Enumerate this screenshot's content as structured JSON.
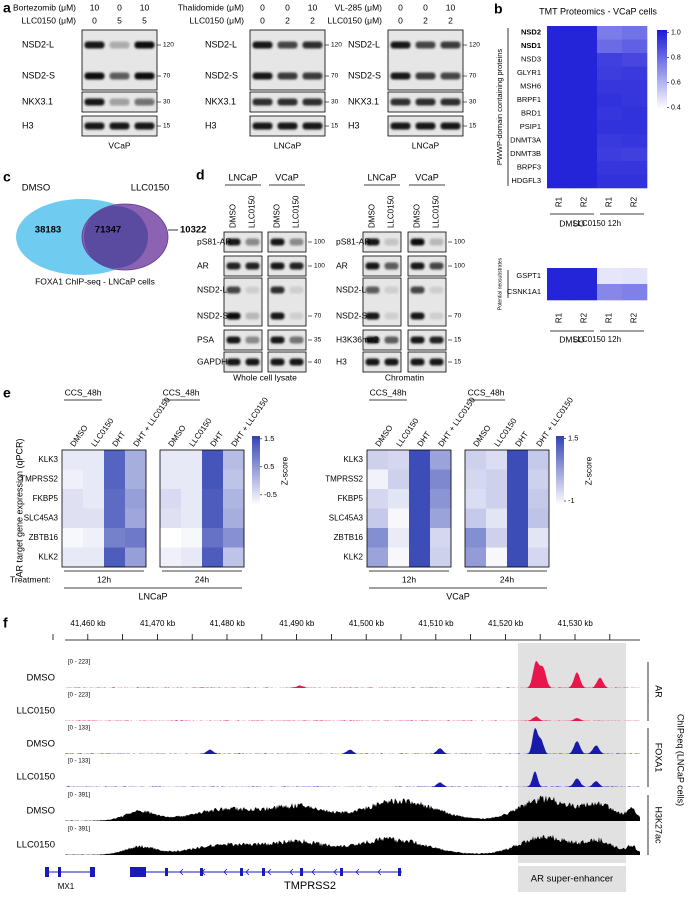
{
  "panel_labels": [
    "a",
    "b",
    "c",
    "d",
    "e",
    "f"
  ],
  "a": {
    "blots": [
      {
        "treatments": [
          {
            "label": "Bortezomib (μM)",
            "doses": [
              10,
              0,
              10
            ]
          },
          {
            "label": "LLC0150 (μM)",
            "doses": [
              0,
              5,
              5
            ]
          }
        ],
        "bands": [
          {
            "name": "NSD2-L",
            "marker": 120,
            "intensity": [
              0.9,
              0.25,
              0.95
            ]
          },
          {
            "name": "NSD2-S",
            "marker": 70,
            "intensity": [
              0.95,
              0.6,
              0.95
            ]
          },
          {
            "name": "NKX3.1",
            "marker": 30,
            "intensity": [
              0.9,
              0.3,
              0.5
            ]
          },
          {
            "name": "H3",
            "marker": 15,
            "intensity": [
              0.9,
              0.9,
              0.9
            ]
          }
        ],
        "cell_line": "VCaP"
      },
      {
        "treatments": [
          {
            "label": "Thalidomide (μM)",
            "doses": [
              0,
              0,
              10
            ]
          },
          {
            "label": "LLC0150 (μM)",
            "doses": [
              0,
              2,
              2
            ]
          }
        ],
        "bands": [
          {
            "name": "NSD2-L",
            "marker": 120,
            "intensity": [
              0.9,
              0.7,
              0.8
            ]
          },
          {
            "name": "NSD2-S",
            "marker": 70,
            "intensity": [
              0.9,
              0.75,
              0.75
            ]
          },
          {
            "name": "NKX3.1",
            "marker": 30,
            "intensity": [
              0.8,
              0.8,
              0.8
            ]
          },
          {
            "name": "H3",
            "marker": 15,
            "intensity": [
              0.9,
              0.9,
              0.9
            ]
          }
        ],
        "cell_line": "LNCaP"
      },
      {
        "treatments": [
          {
            "label": "VL-285 (μM)",
            "doses": [
              0,
              0,
              10
            ]
          },
          {
            "label": "LLC0150 (μM)",
            "doses": [
              0,
              2,
              2
            ]
          }
        ],
        "bands": [
          {
            "name": "NSD2-L",
            "marker": 120,
            "intensity": [
              0.9,
              0.7,
              0.75
            ]
          },
          {
            "name": "NSD2-S",
            "marker": 70,
            "intensity": [
              0.9,
              0.75,
              0.7
            ]
          },
          {
            "name": "NKX3.1",
            "marker": 30,
            "intensity": [
              0.8,
              0.8,
              0.8
            ]
          },
          {
            "name": "H3",
            "marker": 15,
            "intensity": [
              0.9,
              0.9,
              0.9
            ]
          }
        ],
        "cell_line": "LNCaP"
      }
    ]
  },
  "b": {
    "title": "TMT Proteomics - VCaP cells",
    "group_label": "PWWP-domain containing proteins",
    "proteins": [
      "NSD2",
      "NSD1",
      "NSD3",
      "GLYR1",
      "MSH6",
      "BRPF1",
      "BRD1",
      "PSIP1",
      "DNMT3A",
      "DNMT3B",
      "BRPF3",
      "HDGFL3"
    ],
    "values": [
      [
        1,
        1,
        0.75,
        0.78
      ],
      [
        1,
        1,
        0.8,
        0.83
      ],
      [
        1,
        1,
        0.92,
        0.9
      ],
      [
        1,
        1,
        0.93,
        0.94
      ],
      [
        1,
        1,
        0.95,
        0.95
      ],
      [
        1,
        1,
        0.96,
        0.95
      ],
      [
        1,
        1,
        0.95,
        0.96
      ],
      [
        1,
        1,
        0.96,
        0.96
      ],
      [
        1,
        1,
        0.94,
        0.95
      ],
      [
        1,
        1,
        0.93,
        0.92
      ],
      [
        1,
        1,
        0.95,
        0.95
      ],
      [
        1,
        1,
        0.96,
        0.96
      ]
    ],
    "replicates": [
      "R1",
      "R2",
      "R1",
      "R2"
    ],
    "conditions": [
      "DMSO",
      "LLC0150 12h"
    ],
    "colormap": [
      "#ffffff",
      "#1d1dd8"
    ],
    "clim": [
      0.38,
      1.02
    ],
    "colorbar_ticks": [
      {
        "value": 1,
        "label": "1.0"
      },
      0.8,
      0.6,
      0.4
    ],
    "neo": {
      "group_label": "Potential neosubstrates",
      "proteins": [
        "GSPT1",
        "CSNK1A1"
      ],
      "values": [
        [
          1,
          1,
          0.45,
          0.46
        ],
        [
          1,
          1,
          0.72,
          0.74
        ]
      ],
      "replicates": [
        "R1",
        "R2",
        "R1",
        "R2"
      ],
      "conditions": [
        "DMSO",
        "LLC0150 12h"
      ]
    }
  },
  "c": {
    "conditions": [
      "DMSO",
      "LLC0150"
    ],
    "counts": [
      38183,
      71347,
      10322
    ],
    "caption": "FOXA1 ChIP-seq - LNCaP cells"
  },
  "d": {
    "blots": [
      {
        "cell_lines": [
          "LNCaP",
          "VCaP"
        ],
        "treatments": [
          "DMSO",
          "LLC0150"
        ],
        "bands": [
          {
            "name": "pS81-AR",
            "marker": 100,
            "intensity": [
              0.9,
              0.4,
              0.9,
              0.4
            ]
          },
          {
            "name": "AR",
            "marker": 100,
            "intensity": [
              0.85,
              0.85,
              0.9,
              0.85
            ]
          },
          {
            "name": "NSD2-L",
            "intensity": [
              0.7,
              0.1,
              0.8,
              0.1
            ]
          },
          {
            "name": "NSD2-S",
            "marker": 70,
            "intensity": [
              0.95,
              0.2,
              0.9,
              0.1
            ]
          },
          {
            "name": "PSA",
            "marker": 35,
            "intensity": [
              0.9,
              0.4,
              0.9,
              0.5
            ]
          },
          {
            "name": "GAPDH",
            "marker": 40,
            "intensity": [
              0.9,
              0.9,
              0.9,
              0.9
            ]
          }
        ],
        "caption": "Whole cell lysate"
      },
      {
        "cell_lines": [
          "LNCaP",
          "VCaP"
        ],
        "treatments": [
          "DMSO",
          "LLC0150"
        ],
        "bands": [
          {
            "name": "pS81-AR",
            "marker": 100,
            "intensity": [
              0.9,
              0.15,
              0.95,
              0.2
            ]
          },
          {
            "name": "AR",
            "marker": 100,
            "intensity": [
              0.9,
              0.6,
              0.9,
              0.7
            ]
          },
          {
            "name": "NSD2-L",
            "intensity": [
              0.6,
              0.1,
              0.7,
              0.1
            ]
          },
          {
            "name": "NSD2-S",
            "marker": 70,
            "intensity": [
              0.9,
              0.1,
              0.9,
              0.1
            ]
          },
          {
            "name": "H3K36me2",
            "marker": 15,
            "intensity": [
              0.9,
              0.6,
              0.9,
              0.85
            ]
          },
          {
            "name": "H3",
            "marker": 15,
            "intensity": [
              0.9,
              0.9,
              0.9,
              0.9
            ]
          }
        ],
        "caption": "Chromatin"
      }
    ]
  },
  "e": {
    "ylabel": "AR target gene expression (qPCR)",
    "genes": [
      "KLK3",
      "TMPRSS2",
      "FKBP5",
      "SLC45A3",
      "ZBTB16",
      "KLK2"
    ],
    "columns": [
      "DMSO",
      "LLC0150",
      "DHT",
      "DHT + LLC0150"
    ],
    "treatment_label": "Treatment:",
    "colorbar_title": "Z-score",
    "colormap": [
      "#ffffff",
      "#3546b4"
    ],
    "panels": [
      {
        "cell_line": "LNCaP",
        "zlim": [
          -0.9,
          1.6
        ],
        "zticks": [
          1.5,
          0.5,
          -0.5
        ],
        "timepoints": [
          {
            "header": "CCS_48h",
            "time": "12h",
            "values": [
              [
                -0.6,
                -0.6,
                1.2,
                0.2
              ],
              [
                -0.7,
                -0.6,
                1.2,
                0.2
              ],
              [
                -0.5,
                -0.6,
                1.1,
                0.4
              ],
              [
                -0.5,
                -0.5,
                1.1,
                0.3
              ],
              [
                -0.8,
                -0.7,
                0.8,
                0.9
              ],
              [
                -0.6,
                -0.6,
                1.3,
                0.4
              ]
            ]
          },
          {
            "header": "CCS_48h",
            "time": "24h",
            "values": [
              [
                -0.6,
                -0.6,
                1.4,
                0
              ],
              [
                -0.6,
                -0.6,
                1.4,
                -0.1
              ],
              [
                -0.4,
                -0.6,
                1.3,
                0.1
              ],
              [
                -0.5,
                -0.6,
                1.3,
                0.2
              ],
              [
                -0.9,
                -0.8,
                1,
                0.6
              ],
              [
                -0.7,
                -0.6,
                1.3,
                -0.1
              ]
            ]
          }
        ]
      },
      {
        "cell_line": "VCaP",
        "zlim": [
          -1.2,
          1.6
        ],
        "zticks": [
          1.5,
          -1
        ],
        "timepoints": [
          {
            "header": "CCS_48h",
            "time": "12h",
            "values": [
              [
                -0.5,
                -0.6,
                1.5,
                0.2
              ],
              [
                -1,
                -0.5,
                1.5,
                0.6
              ],
              [
                -0.6,
                -0.8,
                1.5,
                0.4
              ],
              [
                -0.4,
                -1.1,
                1.5,
                0.2
              ],
              [
                0.5,
                -0.9,
                1.5,
                -0.6
              ],
              [
                0.2,
                -1.1,
                1.5,
                -0.5
              ]
            ]
          },
          {
            "header": "CCS_48h",
            "time": "24h",
            "values": [
              [
                -0.5,
                -0.7,
                1.5,
                -0.4
              ],
              [
                -0.6,
                -0.5,
                1.5,
                -0.5
              ],
              [
                -0.7,
                -0.5,
                1.5,
                -0.4
              ],
              [
                -0.4,
                -0.8,
                1.5,
                -0.3
              ],
              [
                0.5,
                -0.5,
                1.5,
                -0.8
              ],
              [
                0.3,
                -1.1,
                1.5,
                -0.6
              ]
            ]
          }
        ]
      }
    ]
  },
  "f": {
    "coordinates": [
      "41,460 kb",
      "41,470 kb",
      "41,480 kb",
      "41,490 kb",
      "41,500 kb",
      "41,510 kb",
      "41,520 kb",
      "41,530 kb"
    ],
    "tracks": [
      {
        "condition": "DMSO",
        "range": "[0 - 223]",
        "color": "#e8164a"
      },
      {
        "condition": "LLC0150",
        "range": "[0 - 223]",
        "color": "#e8164a"
      },
      {
        "condition": "DMSO",
        "range": "[0 - 133]",
        "color": "#1a1aa8"
      },
      {
        "condition": "LLC0150",
        "range": "[0 - 133]",
        "color": "#1a1aa8"
      },
      {
        "condition": "DMSO",
        "range": "[0 - 391]",
        "color": "#000000"
      },
      {
        "condition": "LLC0150",
        "range": "[0 - 391]",
        "color": "#000000"
      }
    ],
    "track_groups": [
      "AR",
      "FOXA1",
      "H3K27ac"
    ],
    "assay": "ChIPseq (LNCaP cells)",
    "genes": [
      "MX1",
      "TMPRSS2"
    ],
    "region_label": "AR super-enhancer"
  }
}
